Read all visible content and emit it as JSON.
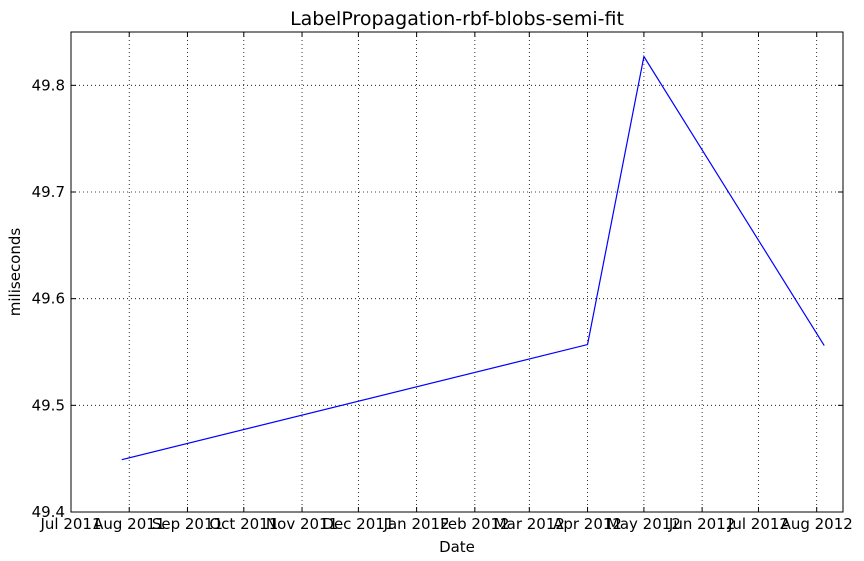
{
  "chart_data": {
    "type": "line",
    "title": "LabelPropagation-rbf-blobs-semi-fit",
    "xlabel": "Date",
    "ylabel": "miliseconds",
    "x_tick_labels": [
      "Jul 2011",
      "Aug 2011",
      "Sep 2011",
      "Oct 2011",
      "Nov 2011",
      "Dec 2011",
      "Jan 2012",
      "Feb 2012",
      "Mar 2012",
      "Apr 2012",
      "May 2012",
      "Jun 2012",
      "Jul 2012",
      "Aug 2012"
    ],
    "y_ticks": [
      49.4,
      49.5,
      49.6,
      49.7,
      49.8
    ],
    "y_tick_labels": [
      "49.4",
      "49.5",
      "49.6",
      "49.7",
      "49.8"
    ],
    "xlim": [
      "2011-07-01",
      "2012-08-15"
    ],
    "ylim": [
      49.4,
      49.85
    ],
    "grid": true,
    "series": [
      {
        "color": "#0000ff",
        "points": [
          {
            "x": "2011-07-28",
            "y": 49.449
          },
          {
            "x": "2012-04-01",
            "y": 49.557
          },
          {
            "x": "2012-05-01",
            "y": 49.827
          },
          {
            "x": "2012-08-05",
            "y": 49.556
          }
        ]
      }
    ]
  }
}
